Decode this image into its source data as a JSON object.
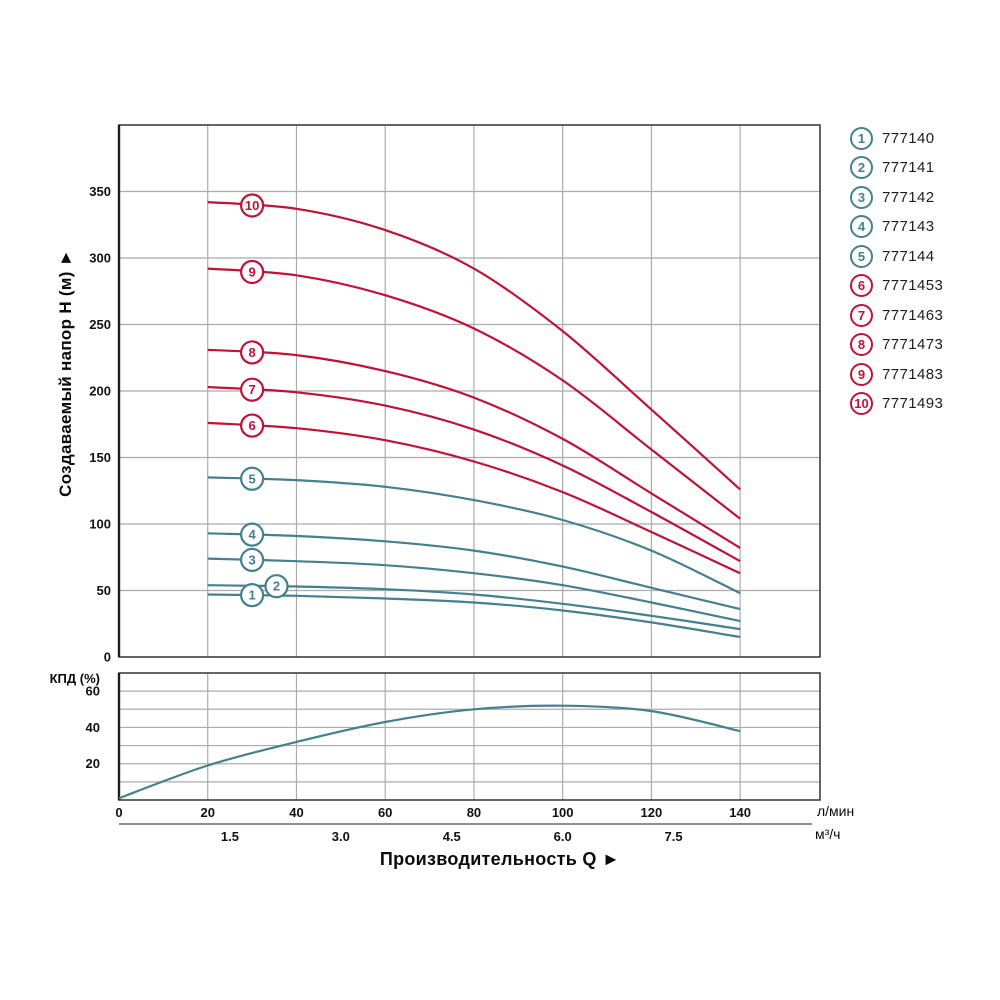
{
  "xlabel": "Производительность Q ►",
  "colors": {
    "teal": "#44808D",
    "red": "#C01236",
    "grid": "#ABABAB",
    "border": "#3F3F3F",
    "axis_dark": "#1d1d1d",
    "divider": "#8F8F8F",
    "text": "#111111"
  },
  "chart_data": [
    {
      "id": "head-curves",
      "type": "line",
      "ylabel": "Создаваемый напор H (м) ►",
      "x_axis": {
        "unit": "л/мин",
        "ticks": [
          0,
          20,
          40,
          60,
          80,
          100,
          120,
          140
        ]
      },
      "x_axis_secondary": {
        "unit": "м³/ч",
        "ticks": [
          1.5,
          3.0,
          4.5,
          6.0,
          7.5
        ],
        "lpm_per_unit": 16.6667
      },
      "y_axis": {
        "ticks": [
          0,
          50,
          100,
          150,
          200,
          250,
          300,
          350
        ],
        "max": 400
      },
      "xlim": [
        0,
        158
      ],
      "grid": true,
      "x": [
        20,
        40,
        60,
        80,
        100,
        120,
        140
      ],
      "series": [
        {
          "label": "1",
          "code": "777140",
          "color": "#44808D",
          "badge_x": 30,
          "values": [
            47,
            46,
            44,
            41,
            35,
            26,
            15
          ]
        },
        {
          "label": "2",
          "code": "777141",
          "color": "#44808D",
          "badge_x": 35.5,
          "values": [
            54,
            53,
            51,
            47,
            40,
            31,
            21
          ]
        },
        {
          "label": "3",
          "code": "777142",
          "color": "#44808D",
          "badge_x": 30,
          "values": [
            74,
            72,
            69,
            63,
            54,
            41,
            27
          ]
        },
        {
          "label": "4",
          "code": "777143",
          "color": "#44808D",
          "badge_x": 30,
          "values": [
            93,
            91,
            87,
            80,
            68,
            52,
            36
          ]
        },
        {
          "label": "5",
          "code": "777144",
          "color": "#44808D",
          "badge_x": 30,
          "values": [
            135,
            133,
            128,
            118,
            103,
            80,
            48
          ]
        },
        {
          "label": "6",
          "code": "7771453",
          "color": "#C01236",
          "badge_x": 30,
          "values": [
            176,
            172,
            163,
            147,
            124,
            94,
            63
          ]
        },
        {
          "label": "7",
          "code": "7771463",
          "color": "#C01236",
          "badge_x": 30,
          "values": [
            203,
            199,
            189,
            171,
            144,
            109,
            72
          ]
        },
        {
          "label": "8",
          "code": "7771473",
          "color": "#C01236",
          "badge_x": 30,
          "values": [
            231,
            227,
            215,
            195,
            164,
            123,
            82
          ]
        },
        {
          "label": "9",
          "code": "7771483",
          "color": "#C01236",
          "badge_x": 30,
          "values": [
            292,
            287,
            272,
            247,
            208,
            156,
            104
          ]
        },
        {
          "label": "10",
          "code": "7771493",
          "color": "#C01236",
          "badge_x": 30,
          "values": [
            342,
            337,
            321,
            292,
            245,
            186,
            126
          ]
        }
      ]
    },
    {
      "id": "efficiency",
      "type": "line",
      "ylabel": "КПД (%)",
      "color": "#44808D",
      "x": [
        0,
        20,
        40,
        60,
        80,
        100,
        120,
        140
      ],
      "values": [
        1,
        19,
        32,
        43,
        50,
        52,
        49,
        38
      ],
      "y_axis": {
        "ticks_labeled": [
          20,
          40,
          60
        ],
        "gridlines": [
          10,
          20,
          30,
          40,
          50,
          60
        ],
        "max": 70
      },
      "grid": true
    }
  ]
}
